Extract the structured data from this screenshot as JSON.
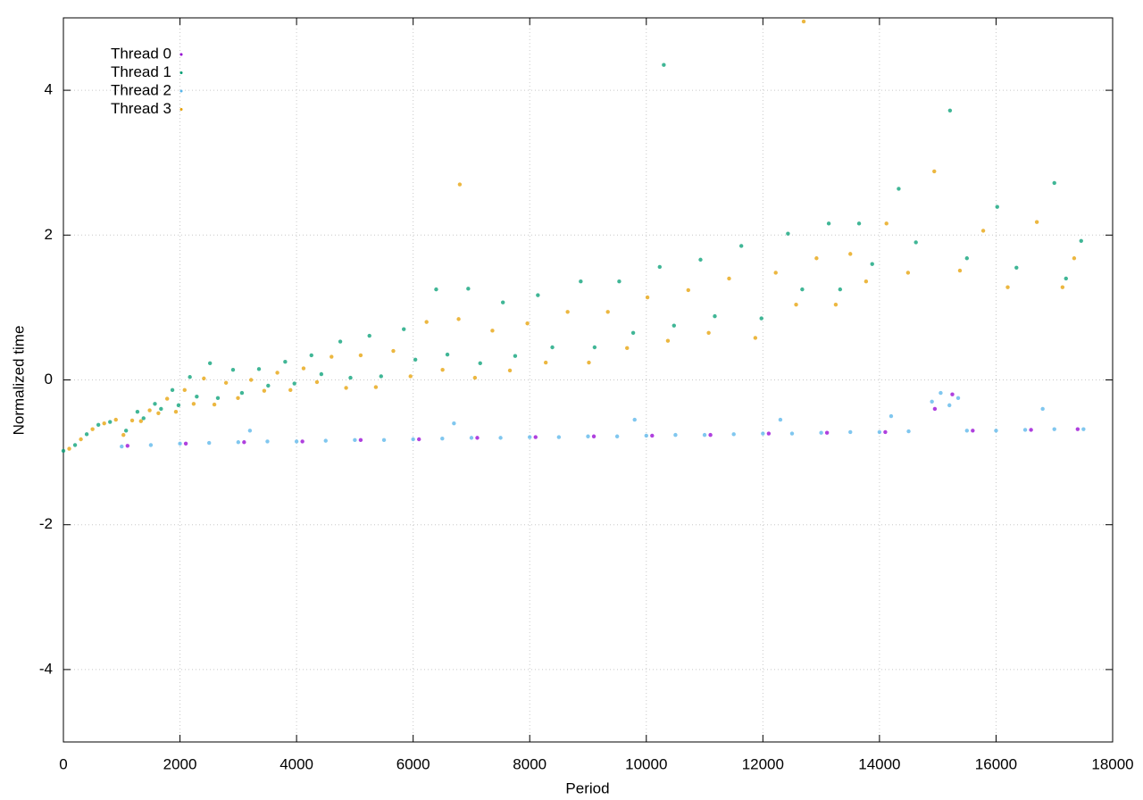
{
  "chart_data": {
    "type": "scatter",
    "xlabel": "Period",
    "ylabel": "Normalized time",
    "xlim": [
      0,
      18000
    ],
    "ylim": [
      -5,
      5
    ],
    "xticks": [
      0,
      2000,
      4000,
      6000,
      8000,
      10000,
      12000,
      14000,
      16000,
      18000
    ],
    "yticks": [
      -4,
      -2,
      0,
      2,
      4
    ],
    "grid": true,
    "legend": "upper left",
    "series": [
      {
        "name": "Thread 0",
        "color": "#9400d3",
        "x": [
          1100,
          2100,
          3100,
          4100,
          5100,
          6100,
          7100,
          8100,
          9100,
          10100,
          11100,
          12100,
          13100,
          14100,
          14950,
          15250,
          15600,
          16600,
          17400
        ],
        "values": [
          -0.91,
          -0.88,
          -0.86,
          -0.85,
          -0.83,
          -0.82,
          -0.8,
          -0.79,
          -0.78,
          -0.77,
          -0.76,
          -0.74,
          -0.73,
          -0.72,
          -0.4,
          -0.2,
          -0.7,
          -0.69,
          -0.68
        ]
      },
      {
        "name": "Thread 1",
        "color": "#009e73",
        "x": [
          0,
          200,
          400,
          600,
          800,
          1075,
          1270,
          1375,
          1570,
          1675,
          1870,
          1975,
          2170,
          2288,
          2515,
          2650,
          2910,
          3063,
          3355,
          3513,
          3805,
          3963,
          4255,
          4425,
          4750,
          4925,
          5250,
          5450,
          5840,
          6038,
          6395,
          6588,
          6945,
          7150,
          7540,
          7750,
          8140,
          8388,
          8875,
          9113,
          9535,
          9775,
          10230,
          10475,
          10930,
          11175,
          11630,
          11975,
          12430,
          12675,
          13130,
          13325,
          13650,
          13875,
          14330,
          14625,
          15210,
          15500,
          16020,
          16350,
          17000,
          17200,
          17460,
          10300
        ],
        "values": [
          -0.98,
          -0.9,
          -0.75,
          -0.62,
          -0.58,
          -0.7,
          -0.44,
          -0.53,
          -0.33,
          -0.4,
          -0.14,
          -0.35,
          0.04,
          -0.23,
          0.23,
          -0.25,
          0.14,
          -0.18,
          0.15,
          -0.08,
          0.25,
          -0.05,
          0.34,
          0.08,
          0.53,
          0.03,
          0.61,
          0.05,
          0.7,
          0.28,
          1.25,
          0.35,
          1.26,
          0.23,
          1.07,
          0.33,
          1.17,
          0.45,
          1.36,
          0.45,
          1.36,
          0.65,
          1.56,
          0.75,
          1.66,
          0.88,
          1.85,
          0.85,
          2.02,
          1.25,
          2.16,
          1.25,
          2.16,
          1.6,
          2.64,
          1.9,
          3.72,
          1.68,
          2.39,
          1.55,
          2.72,
          1.4,
          1.92,
          4.35
        ]
      },
      {
        "name": "Thread 2",
        "color": "#56b4e9",
        "x": [
          1000,
          1500,
          2000,
          2500,
          3000,
          3500,
          4000,
          4500,
          5000,
          5500,
          6000,
          6500,
          7000,
          7500,
          8000,
          8500,
          9000,
          9500,
          10000,
          10500,
          11000,
          11500,
          12000,
          12500,
          13000,
          13500,
          14000,
          14500,
          14900,
          15050,
          15200,
          15350,
          15500,
          16000,
          16500,
          17000,
          17500,
          3200,
          6700,
          9800,
          12300,
          14200,
          16800
        ],
        "values": [
          -0.92,
          -0.9,
          -0.88,
          -0.87,
          -0.86,
          -0.85,
          -0.85,
          -0.84,
          -0.83,
          -0.83,
          -0.82,
          -0.81,
          -0.8,
          -0.8,
          -0.79,
          -0.79,
          -0.78,
          -0.78,
          -0.77,
          -0.76,
          -0.76,
          -0.75,
          -0.74,
          -0.74,
          -0.73,
          -0.72,
          -0.72,
          -0.71,
          -0.3,
          -0.18,
          -0.35,
          -0.25,
          -0.7,
          -0.7,
          -0.69,
          -0.68,
          -0.68,
          -0.7,
          -0.6,
          -0.55,
          -0.55,
          -0.5,
          -0.4
        ]
      },
      {
        "name": "Thread 3",
        "color": "#e69f00",
        "x": [
          100,
          300,
          500,
          700,
          900,
          1030,
          1180,
          1330,
          1480,
          1630,
          1780,
          1930,
          2080,
          2235,
          2410,
          2590,
          2790,
          2995,
          3220,
          3445,
          3670,
          3895,
          4120,
          4350,
          4600,
          4850,
          5100,
          5360,
          5660,
          5955,
          6230,
          6505,
          6780,
          7060,
          7360,
          7660,
          7960,
          8275,
          8650,
          9015,
          9340,
          9670,
          10020,
          10370,
          10720,
          11070,
          11420,
          11870,
          12220,
          12570,
          12920,
          13250,
          13500,
          13770,
          14120,
          14490,
          14940,
          15380,
          15780,
          16200,
          16700,
          17140,
          17340,
          12700,
          6800
        ],
        "values": [
          -0.95,
          -0.82,
          -0.68,
          -0.6,
          -0.55,
          -0.76,
          -0.56,
          -0.57,
          -0.42,
          -0.46,
          -0.26,
          -0.44,
          -0.14,
          -0.33,
          0.02,
          -0.34,
          -0.04,
          -0.25,
          0.0,
          -0.15,
          0.1,
          -0.14,
          0.16,
          -0.03,
          0.32,
          -0.11,
          0.34,
          -0.1,
          0.4,
          0.05,
          0.8,
          0.14,
          0.84,
          0.03,
          0.68,
          0.13,
          0.78,
          0.24,
          0.94,
          0.24,
          0.94,
          0.44,
          1.14,
          0.54,
          1.24,
          0.65,
          1.4,
          0.58,
          1.48,
          1.04,
          1.68,
          1.04,
          1.74,
          1.36,
          2.16,
          1.48,
          2.88,
          1.51,
          2.06,
          1.28,
          2.18,
          1.28,
          1.68,
          4.95,
          2.7
        ]
      }
    ]
  }
}
